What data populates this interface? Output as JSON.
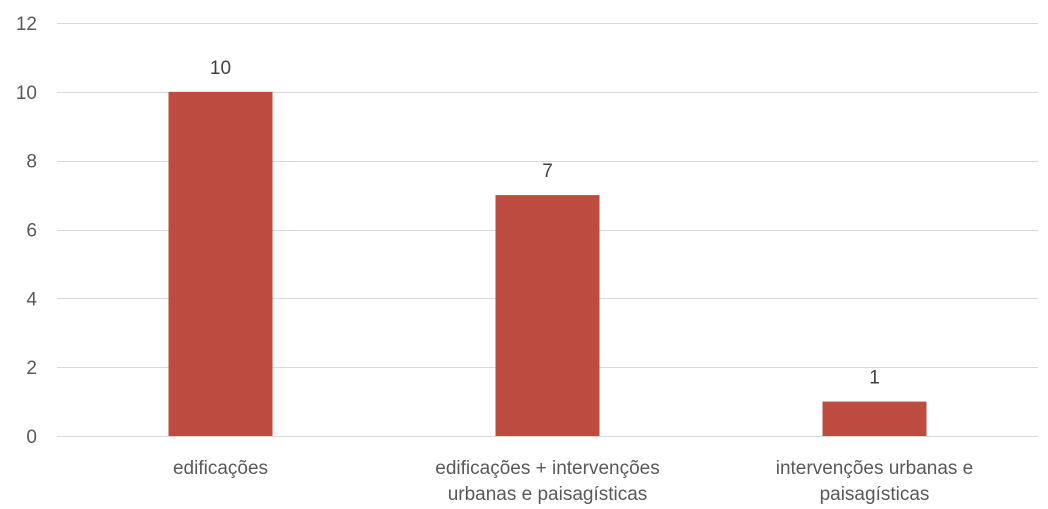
{
  "chart_data": {
    "type": "bar",
    "categories": [
      [
        "edificações"
      ],
      [
        "edificações + intervenções",
        "urbanas e paisagísticas"
      ],
      [
        "intervenções urbanas e",
        "paisagísticas"
      ]
    ],
    "values": [
      10,
      7,
      1
    ],
    "data_labels": [
      "10",
      "7",
      "1"
    ],
    "title": "",
    "xlabel": "",
    "ylabel": "",
    "ylim": [
      0,
      12
    ],
    "yticks": [
      0,
      2,
      4,
      6,
      8,
      10,
      12
    ],
    "ytick_labels": [
      "0",
      "2",
      "4",
      "6",
      "8",
      "10",
      "12"
    ],
    "grid": true,
    "legend": "none",
    "bar_color": "#be4b3f",
    "gridline_color": "#d9d9d9",
    "label_color": "#595959"
  }
}
